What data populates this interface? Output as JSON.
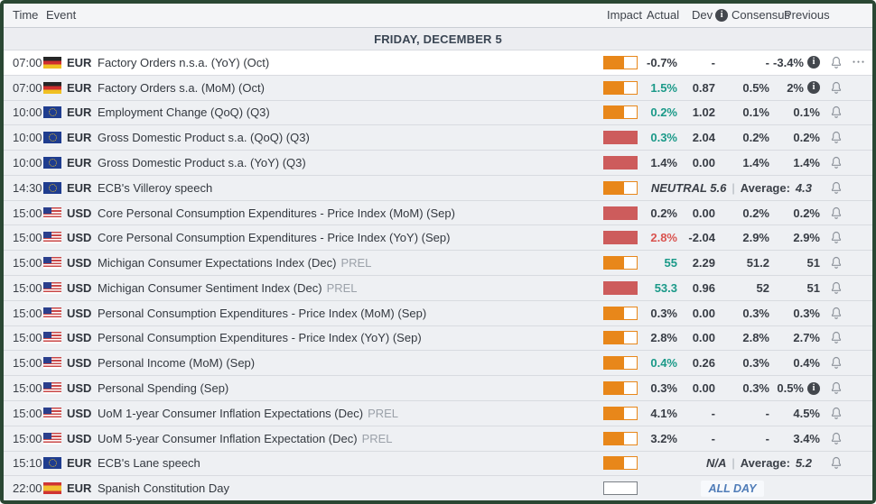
{
  "header": {
    "time_label": "Time",
    "event_label": "Event",
    "impact_label": "Impact",
    "actual_label": "Actual",
    "dev_label": "Dev",
    "consensus_label": "Consensus",
    "previous_label": "Previous",
    "dev_info_icon": "i"
  },
  "date_header": "FRIDAY, DECEMBER 5",
  "colors": {
    "impact_medium_orange": "#e8871a",
    "impact_high_red": "#cd5c5c",
    "actual_positive_green": "#1a9988",
    "actual_negative_red": "#d9534f",
    "frame_green": "#2a4733",
    "allday_blue": "#4f7cb8"
  },
  "icons": {
    "info": "info-icon",
    "bell": "notification-bell-icon",
    "menu": "row-menu-ellipsis-icon"
  },
  "rows": [
    {
      "time": "07:00",
      "currency": "EUR",
      "flag": "de",
      "event": "Factory Orders n.s.a. (YoY) (Oct)",
      "suffix": "",
      "impact": "medium",
      "type": "data",
      "actual": "-0.7%",
      "actual_tone": "neutral",
      "dev": "-",
      "consensus": "-",
      "previous": "-3.4%",
      "previous_info": true,
      "bell": true,
      "menu": true,
      "highlight": true
    },
    {
      "time": "07:00",
      "currency": "EUR",
      "flag": "de",
      "event": "Factory Orders s.a. (MoM) (Oct)",
      "suffix": "",
      "impact": "medium",
      "type": "data",
      "actual": "1.5%",
      "actual_tone": "positive",
      "dev": "0.87",
      "consensus": "0.5%",
      "previous": "2%",
      "previous_info": true,
      "bell": true
    },
    {
      "time": "10:00",
      "currency": "EUR",
      "flag": "eu",
      "event": "Employment Change (QoQ) (Q3)",
      "suffix": "",
      "impact": "medium",
      "type": "data",
      "actual": "0.2%",
      "actual_tone": "positive",
      "dev": "1.02",
      "consensus": "0.1%",
      "previous": "0.1%",
      "bell": true
    },
    {
      "time": "10:00",
      "currency": "EUR",
      "flag": "eu",
      "event": "Gross Domestic Product s.a. (QoQ) (Q3)",
      "suffix": "",
      "impact": "high",
      "type": "data",
      "actual": "0.3%",
      "actual_tone": "positive",
      "dev": "2.04",
      "consensus": "0.2%",
      "previous": "0.2%",
      "bell": true
    },
    {
      "time": "10:00",
      "currency": "EUR",
      "flag": "eu",
      "event": "Gross Domestic Product s.a. (YoY) (Q3)",
      "suffix": "",
      "impact": "high",
      "type": "data",
      "actual": "1.4%",
      "actual_tone": "neutral",
      "dev": "0.00",
      "consensus": "1.4%",
      "previous": "1.4%",
      "bell": true
    },
    {
      "time": "14:30",
      "currency": "EUR",
      "flag": "eu",
      "event": "ECB's Villeroy speech",
      "suffix": "",
      "impact": "medium",
      "type": "speech",
      "sentiment": "NEUTRAL 5.6",
      "average_label": "Average:",
      "average": "4.3",
      "bell": true
    },
    {
      "time": "15:00",
      "currency": "USD",
      "flag": "us",
      "event": "Core Personal Consumption Expenditures - Price Index (MoM) (Sep)",
      "suffix": "",
      "impact": "high",
      "type": "data",
      "actual": "0.2%",
      "actual_tone": "neutral",
      "dev": "0.00",
      "consensus": "0.2%",
      "previous": "0.2%",
      "bell": true
    },
    {
      "time": "15:00",
      "currency": "USD",
      "flag": "us",
      "event": "Core Personal Consumption Expenditures - Price Index (YoY) (Sep)",
      "suffix": "",
      "impact": "high",
      "type": "data",
      "actual": "2.8%",
      "actual_tone": "negative",
      "dev": "-2.04",
      "consensus": "2.9%",
      "previous": "2.9%",
      "bell": true
    },
    {
      "time": "15:00",
      "currency": "USD",
      "flag": "us",
      "event": "Michigan Consumer Expectations Index (Dec)",
      "suffix": "PREL",
      "impact": "medium",
      "type": "data",
      "actual": "55",
      "actual_tone": "positive",
      "dev": "2.29",
      "consensus": "51.2",
      "previous": "51",
      "bell": true
    },
    {
      "time": "15:00",
      "currency": "USD",
      "flag": "us",
      "event": "Michigan Consumer Sentiment Index (Dec)",
      "suffix": "PREL",
      "impact": "high",
      "type": "data",
      "actual": "53.3",
      "actual_tone": "positive",
      "dev": "0.96",
      "consensus": "52",
      "previous": "51",
      "bell": true
    },
    {
      "time": "15:00",
      "currency": "USD",
      "flag": "us",
      "event": "Personal Consumption Expenditures - Price Index (MoM) (Sep)",
      "suffix": "",
      "impact": "medium",
      "type": "data",
      "actual": "0.3%",
      "actual_tone": "neutral",
      "dev": "0.00",
      "consensus": "0.3%",
      "previous": "0.3%",
      "bell": true
    },
    {
      "time": "15:00",
      "currency": "USD",
      "flag": "us",
      "event": "Personal Consumption Expenditures - Price Index (YoY) (Sep)",
      "suffix": "",
      "impact": "medium",
      "type": "data",
      "actual": "2.8%",
      "actual_tone": "neutral",
      "dev": "0.00",
      "consensus": "2.8%",
      "previous": "2.7%",
      "bell": true
    },
    {
      "time": "15:00",
      "currency": "USD",
      "flag": "us",
      "event": "Personal Income (MoM) (Sep)",
      "suffix": "",
      "impact": "medium",
      "type": "data",
      "actual": "0.4%",
      "actual_tone": "positive",
      "dev": "0.26",
      "consensus": "0.3%",
      "previous": "0.4%",
      "bell": true
    },
    {
      "time": "15:00",
      "currency": "USD",
      "flag": "us",
      "event": "Personal Spending (Sep)",
      "suffix": "",
      "impact": "medium",
      "type": "data",
      "actual": "0.3%",
      "actual_tone": "neutral",
      "dev": "0.00",
      "consensus": "0.3%",
      "previous": "0.5%",
      "previous_info": true,
      "bell": true
    },
    {
      "time": "15:00",
      "currency": "USD",
      "flag": "us",
      "event": "UoM 1-year Consumer Inflation Expectations (Dec)",
      "suffix": "PREL",
      "impact": "medium",
      "type": "data",
      "actual": "4.1%",
      "actual_tone": "neutral",
      "dev": "-",
      "consensus": "-",
      "previous": "4.5%",
      "bell": true
    },
    {
      "time": "15:00",
      "currency": "USD",
      "flag": "us",
      "event": "UoM 5-year Consumer Inflation Expectation (Dec)",
      "suffix": "PREL",
      "impact": "medium",
      "type": "data",
      "actual": "3.2%",
      "actual_tone": "neutral",
      "dev": "-",
      "consensus": "-",
      "previous": "3.4%",
      "bell": true
    },
    {
      "time": "15:10",
      "currency": "EUR",
      "flag": "eu",
      "event": "ECB's Lane speech",
      "suffix": "",
      "impact": "medium",
      "type": "speech",
      "sentiment": "N/A",
      "average_label": "Average:",
      "average": "5.2",
      "bell": true
    },
    {
      "time": "22:00",
      "currency": "EUR",
      "flag": "es",
      "event": "Spanish Constitution Day",
      "suffix": "",
      "impact": "none",
      "type": "holiday",
      "badge": "ALL DAY",
      "bell": false
    }
  ]
}
